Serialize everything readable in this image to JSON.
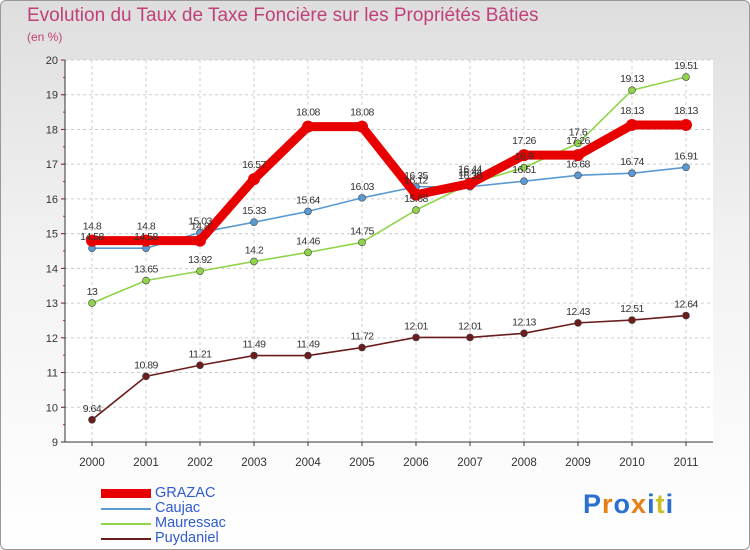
{
  "chart_data": {
    "type": "line",
    "title": "Evolution du Taux de Taxe Foncière sur les Propriétés Bâties",
    "subtitle": "(en %)",
    "xlabel": "",
    "ylabel": "(en %)",
    "ylim": [
      9,
      20
    ],
    "yticks": [
      "9",
      "10",
      "11",
      "12",
      "13",
      "14",
      "15",
      "16",
      "17",
      "18",
      "19",
      "20"
    ],
    "categories": [
      "2000",
      "2001",
      "2002",
      "2003",
      "2004",
      "2005",
      "2006",
      "2007",
      "2008",
      "2009",
      "2010",
      "2011"
    ],
    "grid": true,
    "series": [
      {
        "name": "Puydaniel",
        "color": "#6b1d1d",
        "values": [
          9.64,
          10.89,
          11.21,
          11.49,
          11.49,
          11.72,
          12.01,
          12.01,
          12.13,
          12.43,
          12.51,
          12.64
        ],
        "labels": [
          "9.64",
          "10.89",
          "11.21",
          "11.49",
          "11.49",
          "11.72",
          "12.01",
          "12.01",
          "12.13",
          "12.43",
          "12.51",
          "12.64"
        ]
      },
      {
        "name": "Mauressac",
        "color": "#8fd44a",
        "values": [
          13,
          13.65,
          13.92,
          14.2,
          14.46,
          14.75,
          15.68,
          16.44,
          16.9,
          17.6,
          19.13,
          19.51
        ],
        "labels": [
          "13",
          "13.65",
          "13.92",
          "14.2",
          "14.46",
          "14.75",
          "15.68",
          "16.44",
          "16.9",
          "17.6",
          "19.13",
          "19.51"
        ]
      },
      {
        "name": "Caujac",
        "color": "#5a9ad2",
        "values": [
          14.58,
          14.58,
          15.03,
          15.33,
          15.64,
          16.03,
          16.35,
          16.35,
          16.51,
          16.68,
          16.74,
          16.91
        ],
        "labels": [
          "14.58",
          "14.58",
          "15.03",
          "15.33",
          "15.64",
          "16.03",
          "16.35",
          "16.35",
          "16.51",
          "16.68",
          "16.74",
          "16.91"
        ]
      },
      {
        "name": "GRAZAC",
        "color": "#e80000",
        "values": [
          14.8,
          14.8,
          14.8,
          16.57,
          18.08,
          18.08,
          16.12,
          16.44,
          17.26,
          17.26,
          18.13,
          18.13
        ],
        "labels": [
          "14.8",
          "14.8",
          "14.8",
          "16.57",
          "18.08",
          "18.08",
          "16.12",
          "16.44",
          "17.26",
          "17.26",
          "18.13",
          "18.13"
        ]
      }
    ],
    "legend": [
      "GRAZAC",
      "Caujac",
      "Mauressac",
      "Puydaniel"
    ],
    "legend_position": "bottom-left"
  },
  "branding": {
    "logo_text": [
      "P",
      "r",
      "o",
      "x",
      "i",
      "t",
      "i"
    ],
    "logo_colors": [
      "#2b6fcf",
      "#e97e14",
      "#2b6fcf",
      "#e97e14",
      "#2b6fcf",
      "#c9c021",
      "#2b6fcf"
    ]
  }
}
